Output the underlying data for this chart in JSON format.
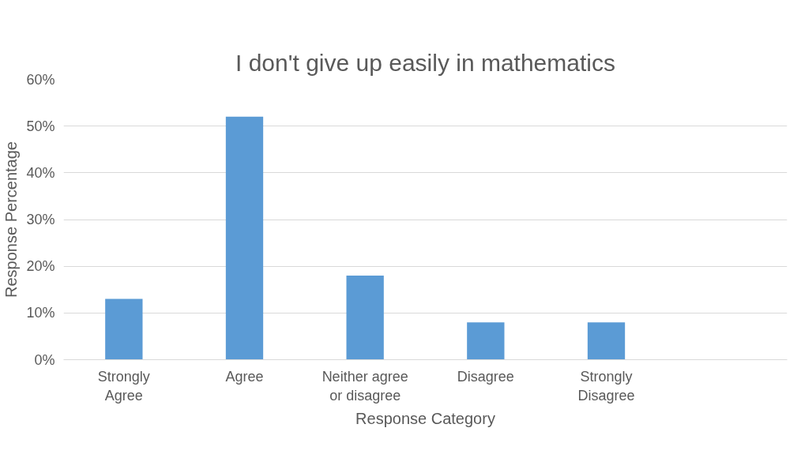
{
  "chart_data": {
    "type": "bar",
    "title": "I don't give up easily in mathematics",
    "xlabel": "Response Category",
    "ylabel": "Response Percentage",
    "categories": [
      "Strongly Agree",
      "Agree",
      "Neither agree or disagree",
      "Disagree",
      "Strongly Disagree",
      null
    ],
    "values": [
      13,
      52,
      18,
      8,
      8,
      null
    ],
    "color": "#5b9bd5",
    "ylim": [
      0,
      60
    ],
    "yticks": [
      {
        "value": 0,
        "label": "0%"
      },
      {
        "value": 10,
        "label": "10%"
      },
      {
        "value": 20,
        "label": "20%"
      },
      {
        "value": 30,
        "label": "30%"
      },
      {
        "value": 40,
        "label": "40%"
      },
      {
        "value": 50,
        "label": "50%"
      },
      {
        "value": 60,
        "label": "60%"
      }
    ],
    "grid": "y"
  }
}
